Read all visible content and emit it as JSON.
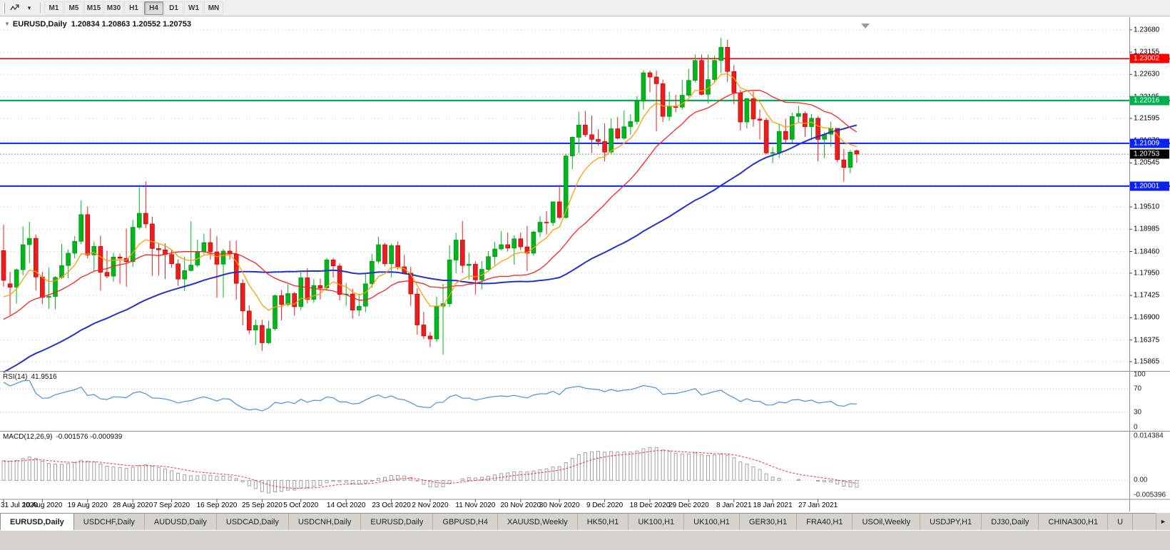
{
  "icons": {
    "chart_menu_marker": "▼",
    "toolbar_caret": "▾",
    "tab_scroll_right": "►"
  },
  "toolbar": {
    "timeframes": [
      "M1",
      "M5",
      "M15",
      "M30",
      "H1",
      "H4",
      "D1",
      "W1",
      "MN"
    ],
    "active_timeframe": "H4"
  },
  "chart": {
    "title": {
      "symbol": "EURUSD,Daily",
      "ohlc": "1.20834 1.20863 1.20552 1.20753"
    }
  },
  "price_axis": {
    "ticks": [
      "1.23680",
      "1.23155",
      "1.22630",
      "1.22105",
      "1.21595",
      "1.21070",
      "1.20545",
      "1.20020",
      "1.19510",
      "1.18985",
      "1.18460",
      "1.17950",
      "1.17425",
      "1.16900",
      "1.16375",
      "1.15865"
    ]
  },
  "lines": {
    "horizontal": [
      {
        "price": 1.23002,
        "label": "1.23002",
        "color": "#ff0000",
        "width": 1.6
      },
      {
        "price": 1.22016,
        "label": "1.22016",
        "color": "#00b050",
        "width": 2.2
      },
      {
        "price": 1.21009,
        "label": "1.21009",
        "color": "#0a23f0",
        "width": 2
      },
      {
        "price": 1.20001,
        "label": "1.20001",
        "color": "#0a23f0",
        "width": 2
      }
    ],
    "current_price": {
      "price": 1.20753,
      "label": "1.20753",
      "bg": "#000000"
    }
  },
  "indicators": {
    "rsi": {
      "label": "RSI(14)",
      "value": "41.9516",
      "axis_labels": [
        "100",
        "70",
        "30",
        "0"
      ],
      "axis_values": [
        100,
        70,
        30,
        0
      ],
      "levels": [
        70,
        30
      ],
      "line_color": "#4a90d9"
    },
    "macd": {
      "label": "MACD(12,26,9)",
      "value": "-0.001576 -0.000939",
      "axis_labels": [
        "0.014384",
        "0.00",
        "-0.005396"
      ],
      "axis_values": [
        0.014384,
        0,
        -0.005396
      ],
      "histogram_color": "#a0a0a0",
      "signal_color": "#ff3030"
    }
  },
  "date_axis": {
    "labels": [
      "31 Jul 2020",
      "10 Aug 2020",
      "19 Aug 2020",
      "28 Aug 2020",
      "7 Sep 2020",
      "16 Sep 2020",
      "25 Sep 2020",
      "5 Oct 2020",
      "14 Oct 2020",
      "23 Oct 2020",
      "2 Nov 2020",
      "11 Nov 2020",
      "20 Nov 2020",
      "30 Nov 2020",
      "9 Dec 2020",
      "18 Dec 2020",
      "29 Dec 2020",
      "8 Jan 2021",
      "18 Jan 2021",
      "27 Jan 2021"
    ],
    "bar_indices": [
      0,
      6,
      13,
      20,
      26,
      33,
      40,
      46,
      53,
      60,
      66,
      73,
      80,
      86,
      93,
      100,
      106,
      113,
      119,
      126
    ]
  },
  "tabs": {
    "items": [
      "EURUSD,Daily",
      "USDCHF,Daily",
      "AUDUSD,Daily",
      "USDCAD,Daily",
      "USDCNH,Daily",
      "EURUSD,Daily",
      "GBPUSD,H4",
      "XAUUSD,Weekly",
      "HK50,H1",
      "UK100,H1",
      "UK100,H1",
      "GER30,H1",
      "FRA40,H1",
      "USOil,Weekly",
      "USDJPY,H1",
      "DJ30,Daily",
      "CHINA300,H1",
      "U"
    ],
    "active_index": 0
  },
  "chart_data": {
    "type": "candlestick",
    "symbol": "EURUSD",
    "period": "Daily",
    "y_range": [
      1.1568,
      1.2398
    ],
    "colors": {
      "up": "#00b61b",
      "up_edge": "#028a14",
      "down": "#ee1c1c",
      "down_edge": "#a30000",
      "grid": "#c8c8c8"
    },
    "moving_averages": [
      {
        "name": "ma-fast",
        "color": "#ff9f00",
        "width": 1.3
      },
      {
        "name": "ma-mid",
        "color": "#ff2020",
        "width": 1.3
      },
      {
        "name": "ma-slow",
        "color": "#2230cc",
        "width": 2
      }
    ],
    "ohlc": [
      [
        1.1848,
        1.1909,
        1.1763,
        1.1778
      ],
      [
        1.177,
        1.1798,
        1.1696,
        1.1762
      ],
      [
        1.1762,
        1.1806,
        1.1723,
        1.1803
      ],
      [
        1.1803,
        1.1905,
        1.179,
        1.1862
      ],
      [
        1.1862,
        1.1916,
        1.1818,
        1.1877
      ],
      [
        1.1877,
        1.1886,
        1.1754,
        1.1786
      ],
      [
        1.1786,
        1.1798,
        1.1722,
        1.1738
      ],
      [
        1.1738,
        1.1808,
        1.1711,
        1.174
      ],
      [
        1.174,
        1.1788,
        1.171,
        1.1785
      ],
      [
        1.1785,
        1.1864,
        1.1781,
        1.1813
      ],
      [
        1.1813,
        1.1851,
        1.1783,
        1.1842
      ],
      [
        1.1842,
        1.1882,
        1.183,
        1.187
      ],
      [
        1.187,
        1.1966,
        1.1863,
        1.1933
      ],
      [
        1.1933,
        1.1952,
        1.183,
        1.1838
      ],
      [
        1.1838,
        1.1869,
        1.18,
        1.1858
      ],
      [
        1.1858,
        1.1883,
        1.1754,
        1.1797
      ],
      [
        1.1797,
        1.1848,
        1.1783,
        1.1788
      ],
      [
        1.1788,
        1.1843,
        1.1775,
        1.1833
      ],
      [
        1.1833,
        1.1841,
        1.177,
        1.183
      ],
      [
        1.183,
        1.19,
        1.1763,
        1.1822
      ],
      [
        1.1822,
        1.192,
        1.181,
        1.1903
      ],
      [
        1.1903,
        1.1997,
        1.1898,
        1.1936
      ],
      [
        1.1936,
        1.2011,
        1.1901,
        1.1911
      ],
      [
        1.1911,
        1.1928,
        1.1789,
        1.1853
      ],
      [
        1.1853,
        1.1864,
        1.1789,
        1.185
      ],
      [
        1.185,
        1.1865,
        1.1781,
        1.1839
      ],
      [
        1.1839,
        1.1849,
        1.1808,
        1.1817
      ],
      [
        1.1817,
        1.1827,
        1.1765,
        1.1781
      ],
      [
        1.1781,
        1.1834,
        1.1753,
        1.1801
      ],
      [
        1.1801,
        1.1917,
        1.1799,
        1.1814
      ],
      [
        1.1814,
        1.1874,
        1.1809,
        1.1845
      ],
      [
        1.1845,
        1.1888,
        1.1839,
        1.1867
      ],
      [
        1.1867,
        1.19,
        1.1827,
        1.1845
      ],
      [
        1.1845,
        1.1882,
        1.1737,
        1.1816
      ],
      [
        1.1816,
        1.1852,
        1.1737,
        1.1847
      ],
      [
        1.1847,
        1.1871,
        1.1827,
        1.184
      ],
      [
        1.184,
        1.1872,
        1.1732,
        1.1771
      ],
      [
        1.1771,
        1.178,
        1.1672,
        1.1706
      ],
      [
        1.1706,
        1.1719,
        1.1651,
        1.1661
      ],
      [
        1.1661,
        1.1686,
        1.1626,
        1.1672
      ],
      [
        1.1672,
        1.1685,
        1.1612,
        1.1631
      ],
      [
        1.1631,
        1.1683,
        1.1628,
        1.1664
      ],
      [
        1.1664,
        1.1745,
        1.166,
        1.1742
      ],
      [
        1.1742,
        1.1755,
        1.1684,
        1.1721
      ],
      [
        1.1721,
        1.1769,
        1.1717,
        1.1747
      ],
      [
        1.1747,
        1.1751,
        1.1695,
        1.1716
      ],
      [
        1.1716,
        1.1797,
        1.1708,
        1.1784
      ],
      [
        1.1784,
        1.1807,
        1.1724,
        1.1733
      ],
      [
        1.1733,
        1.1781,
        1.1725,
        1.1766
      ],
      [
        1.1766,
        1.1782,
        1.1733,
        1.176
      ],
      [
        1.176,
        1.1831,
        1.1755,
        1.1826
      ],
      [
        1.1826,
        1.1831,
        1.1785,
        1.1812
      ],
      [
        1.1812,
        1.1818,
        1.1731,
        1.1745
      ],
      [
        1.1745,
        1.1772,
        1.1718,
        1.1746
      ],
      [
        1.1746,
        1.1758,
        1.1688,
        1.1708
      ],
      [
        1.1708,
        1.1747,
        1.1694,
        1.1717
      ],
      [
        1.1717,
        1.1794,
        1.1703,
        1.177
      ],
      [
        1.177,
        1.184,
        1.176,
        1.1823
      ],
      [
        1.1823,
        1.1881,
        1.1817,
        1.1862
      ],
      [
        1.1862,
        1.1866,
        1.1811,
        1.1817
      ],
      [
        1.1817,
        1.1864,
        1.1785,
        1.186
      ],
      [
        1.186,
        1.187,
        1.1803,
        1.181
      ],
      [
        1.181,
        1.1838,
        1.1793,
        1.1795
      ],
      [
        1.1795,
        1.181,
        1.1718,
        1.1746
      ],
      [
        1.1746,
        1.1759,
        1.165,
        1.1673
      ],
      [
        1.1673,
        1.1704,
        1.164,
        1.1647
      ],
      [
        1.1647,
        1.1656,
        1.1621,
        1.164
      ],
      [
        1.164,
        1.174,
        1.1633,
        1.1717
      ],
      [
        1.1717,
        1.177,
        1.1603,
        1.1723
      ],
      [
        1.1723,
        1.1861,
        1.1716,
        1.1826
      ],
      [
        1.1826,
        1.189,
        1.1795,
        1.1873
      ],
      [
        1.1873,
        1.1918,
        1.1795,
        1.1813
      ],
      [
        1.1813,
        1.1843,
        1.178,
        1.1816
      ],
      [
        1.1816,
        1.1823,
        1.1745,
        1.1779
      ],
      [
        1.1779,
        1.1823,
        1.1757,
        1.1804
      ],
      [
        1.1804,
        1.1847,
        1.1799,
        1.1834
      ],
      [
        1.1834,
        1.1869,
        1.1814,
        1.1852
      ],
      [
        1.1852,
        1.1894,
        1.1849,
        1.1862
      ],
      [
        1.1862,
        1.1891,
        1.1846,
        1.1854
      ],
      [
        1.1854,
        1.1884,
        1.1815,
        1.1876
      ],
      [
        1.1876,
        1.1891,
        1.1849,
        1.1857
      ],
      [
        1.1857,
        1.1906,
        1.18,
        1.1842
      ],
      [
        1.1842,
        1.1895,
        1.1836,
        1.1892
      ],
      [
        1.1892,
        1.1929,
        1.188,
        1.1915
      ],
      [
        1.1915,
        1.1941,
        1.1886,
        1.1914
      ],
      [
        1.1914,
        1.1963,
        1.1906,
        1.1963
      ],
      [
        1.1963,
        1.2003,
        1.1923,
        1.1926
      ],
      [
        1.1926,
        1.2076,
        1.1923,
        1.2071
      ],
      [
        1.2071,
        1.2117,
        1.204,
        1.2115
      ],
      [
        1.2115,
        1.2175,
        1.2077,
        1.2144
      ],
      [
        1.2144,
        1.2177,
        1.2116,
        1.2121
      ],
      [
        1.2121,
        1.2166,
        1.2078,
        1.211
      ],
      [
        1.211,
        1.2134,
        1.2095,
        1.2105
      ],
      [
        1.2105,
        1.2148,
        1.2058,
        1.208
      ],
      [
        1.208,
        1.2159,
        1.2076,
        1.2135
      ],
      [
        1.2135,
        1.2163,
        1.211,
        1.2113
      ],
      [
        1.2113,
        1.2178,
        1.2109,
        1.214
      ],
      [
        1.214,
        1.2169,
        1.2121,
        1.2152
      ],
      [
        1.2152,
        1.2212,
        1.2145,
        1.22
      ],
      [
        1.22,
        1.2273,
        1.218,
        1.2267
      ],
      [
        1.2267,
        1.2272,
        1.2221,
        1.2257
      ],
      [
        1.2257,
        1.2272,
        1.2129,
        1.2241
      ],
      [
        1.2241,
        1.2251,
        1.2151,
        1.2164
      ],
      [
        1.2164,
        1.2222,
        1.2154,
        1.2187
      ],
      [
        1.2187,
        1.2215,
        1.2174,
        1.2186
      ],
      [
        1.2186,
        1.225,
        1.218,
        1.2214
      ],
      [
        1.2214,
        1.2276,
        1.221,
        1.2249
      ],
      [
        1.2249,
        1.231,
        1.2245,
        1.2296
      ],
      [
        1.2296,
        1.231,
        1.2214,
        1.2216
      ],
      [
        1.2216,
        1.231,
        1.2195,
        1.2251
      ],
      [
        1.2251,
        1.2307,
        1.2243,
        1.2296
      ],
      [
        1.2296,
        1.2349,
        1.2266,
        1.2327
      ],
      [
        1.2327,
        1.2345,
        1.2245,
        1.227
      ],
      [
        1.227,
        1.2285,
        1.2193,
        1.222
      ],
      [
        1.222,
        1.2227,
        1.2131,
        1.2151
      ],
      [
        1.2151,
        1.2208,
        1.2136,
        1.2206
      ],
      [
        1.2206,
        1.2223,
        1.214,
        1.2158
      ],
      [
        1.2158,
        1.218,
        1.211,
        1.2155
      ],
      [
        1.2155,
        1.2161,
        1.2075,
        1.2078
      ],
      [
        1.2078,
        1.2092,
        1.2054,
        1.2079
      ],
      [
        1.2079,
        1.2145,
        1.2066,
        1.2129
      ],
      [
        1.2129,
        1.2158,
        1.2102,
        1.211
      ],
      [
        1.211,
        1.2173,
        1.2102,
        1.2164
      ],
      [
        1.2164,
        1.2189,
        1.215,
        1.2171
      ],
      [
        1.2171,
        1.2176,
        1.2116,
        1.214
      ],
      [
        1.214,
        1.217,
        1.2108,
        1.216
      ],
      [
        1.216,
        1.2165,
        1.2058,
        1.211
      ],
      [
        1.211,
        1.2127,
        1.2066,
        1.2122
      ],
      [
        1.2122,
        1.2152,
        1.2093,
        1.2136
      ],
      [
        1.2136,
        1.2136,
        1.2056,
        1.2062
      ],
      [
        1.2062,
        1.2087,
        1.2011,
        1.2044
      ],
      [
        1.2044,
        1.2085,
        1.203,
        1.208
      ],
      [
        1.20834,
        1.20863,
        1.20552,
        1.20753
      ]
    ]
  }
}
